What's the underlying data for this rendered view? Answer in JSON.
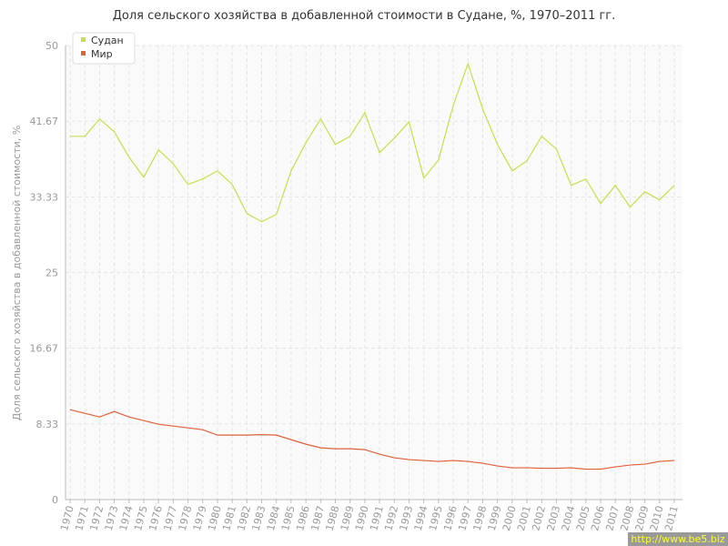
{
  "chart_data": {
    "type": "line",
    "title": "Доля сельского хозяйства в добавленной стоимости в Судане, %, 1970–2011 гг.",
    "y_label": "Доля сельского хозяйства в добавленной стоимости, %",
    "categories": [
      "1970",
      "1971",
      "1972",
      "1973",
      "1974",
      "1975",
      "1976",
      "1977",
      "1978",
      "1979",
      "1980",
      "1981",
      "1982",
      "1983",
      "1984",
      "1985",
      "1986",
      "1987",
      "1988",
      "1989",
      "1990",
      "1991",
      "1992",
      "1993",
      "1994",
      "1995",
      "1996",
      "1997",
      "1998",
      "1999",
      "2000",
      "2001",
      "2002",
      "2003",
      "2004",
      "2005",
      "2006",
      "2007",
      "2008",
      "2009",
      "2010",
      "2011"
    ],
    "series": [
      {
        "name": "Судан",
        "color": "#c5df4f",
        "values": [
          40.0,
          40.0,
          41.9,
          40.5,
          37.7,
          35.5,
          38.5,
          37.0,
          34.7,
          35.3,
          36.2,
          34.7,
          31.5,
          30.6,
          31.4,
          36.2,
          39.3,
          41.9,
          39.1,
          40.0,
          42.6,
          38.2,
          39.8,
          41.6,
          35.4,
          37.4,
          43.4,
          48.0,
          43.0,
          39.1,
          36.2,
          37.3,
          40.0,
          38.6,
          34.6,
          35.3,
          32.6,
          34.6,
          32.2,
          33.9,
          33.0,
          34.6
        ]
      },
      {
        "name": "Мир",
        "color": "#e0603a",
        "values": [
          9.9,
          9.5,
          9.1,
          9.7,
          9.1,
          8.7,
          8.3,
          8.1,
          7.9,
          7.7,
          7.1,
          7.1,
          7.1,
          7.15,
          7.1,
          6.6,
          6.1,
          5.7,
          5.6,
          5.6,
          5.5,
          5.0,
          4.6,
          4.4,
          4.3,
          4.2,
          4.3,
          4.2,
          4.0,
          3.7,
          3.5,
          3.5,
          3.45,
          3.45,
          3.5,
          3.35,
          3.35,
          3.6,
          3.8,
          3.9,
          4.2,
          4.3
        ]
      }
    ],
    "ylim": [
      0,
      50
    ],
    "yticks": [
      0,
      8.33,
      16.67,
      25,
      33.33,
      41.67,
      50
    ],
    "grid": true,
    "legend": "top-left",
    "watermark": "http://www.be5.biz"
  }
}
